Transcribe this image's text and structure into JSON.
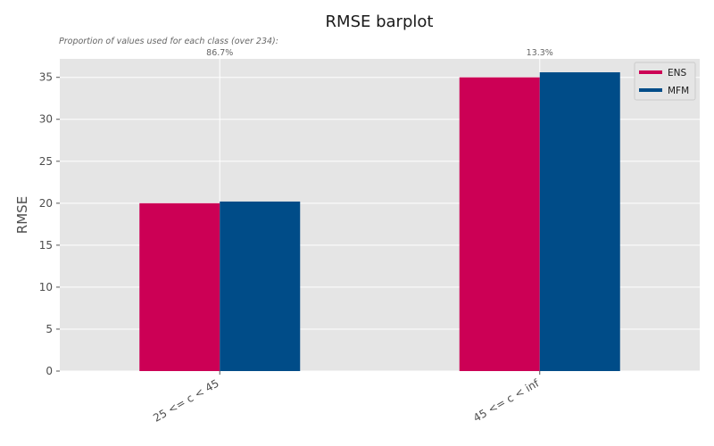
{
  "chart_data": {
    "type": "bar",
    "title": "RMSE barplot",
    "subtitle": "Proportion of values used for each class (over 234):",
    "xlabel": "",
    "ylabel": "RMSE",
    "categories": [
      "25 <= c < 45",
      "45 <= c < inf"
    ],
    "proportions": [
      "86.7%",
      "13.3%"
    ],
    "series": [
      {
        "name": "ENS",
        "color": "#cc0055",
        "values": [
          20.0,
          35.0
        ]
      },
      {
        "name": "MFM",
        "color": "#004c88",
        "values": [
          20.2,
          35.6
        ]
      }
    ],
    "ylim": [
      0,
      37.2
    ],
    "yticks": [
      0,
      5,
      10,
      15,
      20,
      25,
      30,
      35
    ],
    "grid": true,
    "legend_position": "top-right",
    "background_color": "#e5e5e5"
  }
}
